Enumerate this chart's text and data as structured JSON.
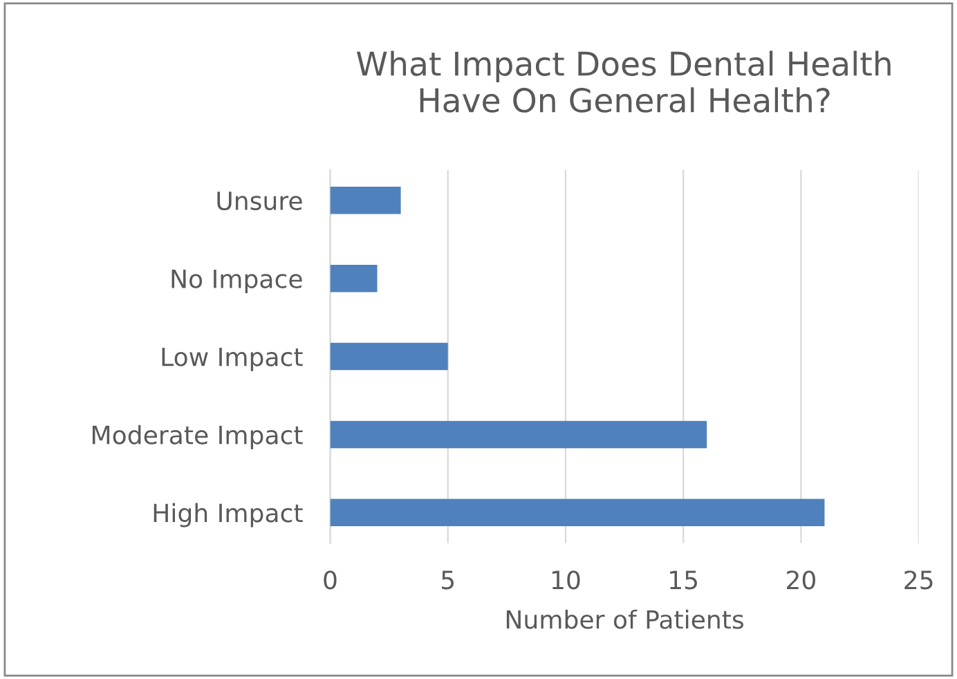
{
  "chart_data": {
    "type": "bar",
    "orientation": "horizontal",
    "title": "What Impact Does Dental Health\nHave On General Health?",
    "xlabel": "Number of Patients",
    "categories": [
      "Unsure",
      "No Impace",
      "Low Impact",
      "Moderate Impact",
      "High Impact"
    ],
    "values": [
      3,
      2,
      5,
      16,
      21
    ],
    "color": "#4f81bd",
    "xlim": [
      0,
      25
    ],
    "xticks": [
      0,
      5,
      10,
      15,
      20,
      25
    ],
    "grid": "x",
    "legend": false
  }
}
